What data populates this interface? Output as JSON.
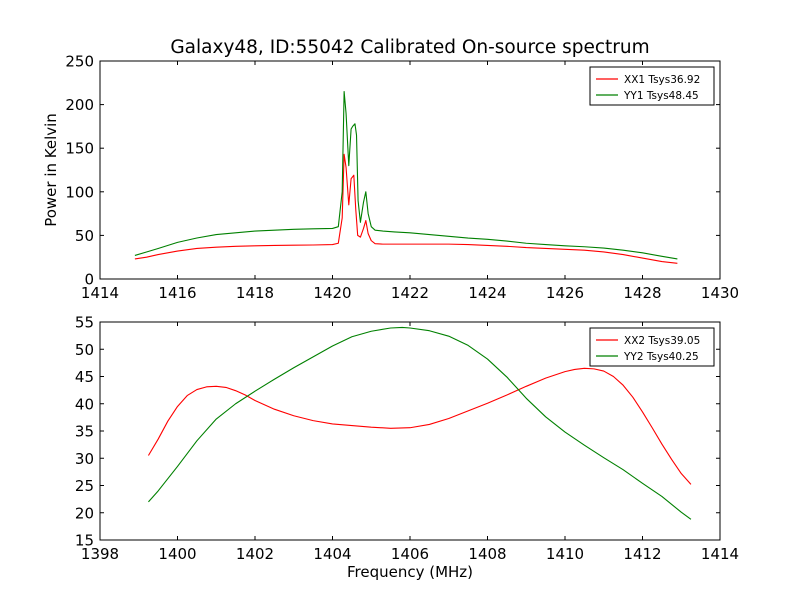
{
  "figure": {
    "title": "Galaxy48, ID:55042 Calibrated On-source spectrum"
  },
  "chart_data": [
    {
      "type": "line",
      "title": "Galaxy48, ID:55042 Calibrated On-source spectrum",
      "xlabel": "",
      "ylabel": "Power in Kelvin",
      "xlim": [
        1414,
        1430
      ],
      "ylim": [
        0,
        250
      ],
      "xticks": [
        1414,
        1416,
        1418,
        1420,
        1422,
        1424,
        1426,
        1428,
        1430
      ],
      "yticks": [
        0,
        50,
        100,
        150,
        200,
        250
      ],
      "grid": false,
      "legend_position": "top-right",
      "series": [
        {
          "name": "XX1 Tsys36.92",
          "color": "#ff0000",
          "x": [
            1414.9,
            1415.2,
            1415.5,
            1416.0,
            1416.5,
            1417.0,
            1417.5,
            1418.0,
            1418.5,
            1419.0,
            1419.5,
            1420.0,
            1420.15,
            1420.25,
            1420.3,
            1420.35,
            1420.42,
            1420.48,
            1420.55,
            1420.6,
            1420.65,
            1420.72,
            1420.8,
            1420.86,
            1420.92,
            1421.0,
            1421.1,
            1421.3,
            1421.6,
            1422.0,
            1422.5,
            1423.0,
            1423.5,
            1424.0,
            1424.5,
            1425.0,
            1425.5,
            1426.0,
            1426.5,
            1427.0,
            1427.5,
            1428.0,
            1428.5,
            1428.9
          ],
          "y": [
            23,
            25,
            28,
            32,
            35,
            36.5,
            37.5,
            38,
            38.5,
            38.8,
            39,
            39.5,
            41,
            70,
            143,
            128,
            85,
            115,
            119,
            80,
            50,
            48,
            58,
            67,
            52,
            44,
            40.5,
            40,
            40,
            40,
            40,
            40,
            39.5,
            38.5,
            37.5,
            36,
            35,
            34,
            33,
            31,
            28,
            24,
            20,
            18
          ]
        },
        {
          "name": "YY1 Tsys48.45",
          "color": "#008000",
          "x": [
            1414.9,
            1415.2,
            1415.5,
            1416.0,
            1416.5,
            1417.0,
            1417.5,
            1418.0,
            1418.5,
            1419.0,
            1419.5,
            1420.0,
            1420.15,
            1420.25,
            1420.3,
            1420.35,
            1420.42,
            1420.48,
            1420.52,
            1420.58,
            1420.62,
            1420.66,
            1420.72,
            1420.8,
            1420.86,
            1420.92,
            1421.0,
            1421.1,
            1421.3,
            1421.6,
            1422.0,
            1422.5,
            1423.0,
            1423.5,
            1424.0,
            1424.5,
            1425.0,
            1425.5,
            1426.0,
            1426.5,
            1427.0,
            1427.5,
            1428.0,
            1428.5,
            1428.9
          ],
          "y": [
            27,
            31,
            35,
            42,
            47,
            51,
            53,
            55,
            56,
            57,
            57.5,
            58,
            60,
            100,
            215,
            190,
            130,
            172,
            175,
            178,
            165,
            90,
            65,
            88,
            100,
            75,
            60,
            56,
            55,
            54,
            53,
            51,
            49,
            47,
            45.5,
            43.5,
            41,
            39.5,
            38,
            37,
            35.5,
            33,
            30,
            26,
            23
          ]
        }
      ]
    },
    {
      "type": "line",
      "title": "",
      "xlabel": "Frequency (MHz)",
      "ylabel": "",
      "xlim": [
        1398,
        1414
      ],
      "ylim": [
        15,
        55
      ],
      "xticks": [
        1398,
        1400,
        1402,
        1404,
        1406,
        1408,
        1410,
        1412,
        1414
      ],
      "yticks": [
        15,
        20,
        25,
        30,
        35,
        40,
        45,
        50,
        55
      ],
      "grid": false,
      "legend_position": "top-right",
      "series": [
        {
          "name": "XX2 Tsys39.05",
          "color": "#ff0000",
          "x": [
            1399.25,
            1399.5,
            1399.75,
            1400.0,
            1400.25,
            1400.5,
            1400.75,
            1401.0,
            1401.25,
            1401.5,
            1401.75,
            1402.0,
            1402.5,
            1403.0,
            1403.5,
            1404.0,
            1404.5,
            1405.0,
            1405.5,
            1406.0,
            1406.5,
            1407.0,
            1407.5,
            1408.0,
            1408.5,
            1409.0,
            1409.5,
            1410.0,
            1410.25,
            1410.5,
            1410.75,
            1411.0,
            1411.25,
            1411.5,
            1411.75,
            1412.0,
            1412.25,
            1412.5,
            1412.75,
            1413.0,
            1413.25
          ],
          "y": [
            30.5,
            33.5,
            36.8,
            39.5,
            41.5,
            42.6,
            43.1,
            43.2,
            43.0,
            42.4,
            41.6,
            40.6,
            39.0,
            37.8,
            36.9,
            36.3,
            36.0,
            35.7,
            35.5,
            35.6,
            36.2,
            37.3,
            38.7,
            40.1,
            41.6,
            43.2,
            44.7,
            45.9,
            46.3,
            46.5,
            46.4,
            46.0,
            45.0,
            43.4,
            41.2,
            38.5,
            35.6,
            32.6,
            29.8,
            27.2,
            25.2
          ]
        },
        {
          "name": "YY2 Tsys40.25",
          "color": "#008000",
          "x": [
            1399.25,
            1399.5,
            1400.0,
            1400.5,
            1401.0,
            1401.5,
            1402.0,
            1402.5,
            1403.0,
            1403.5,
            1404.0,
            1404.5,
            1405.0,
            1405.5,
            1405.8,
            1406.0,
            1406.5,
            1407.0,
            1407.5,
            1408.0,
            1408.5,
            1409.0,
            1409.5,
            1410.0,
            1410.5,
            1411.0,
            1411.5,
            1412.0,
            1412.5,
            1413.0,
            1413.25
          ],
          "y": [
            22.0,
            24.0,
            28.5,
            33.2,
            37.2,
            40.0,
            42.3,
            44.5,
            46.6,
            48.6,
            50.6,
            52.3,
            53.3,
            53.9,
            54.0,
            53.9,
            53.4,
            52.4,
            50.7,
            48.2,
            44.9,
            41.0,
            37.6,
            34.8,
            32.4,
            30.1,
            27.9,
            25.4,
            23.0,
            20.1,
            18.8
          ]
        }
      ]
    }
  ]
}
